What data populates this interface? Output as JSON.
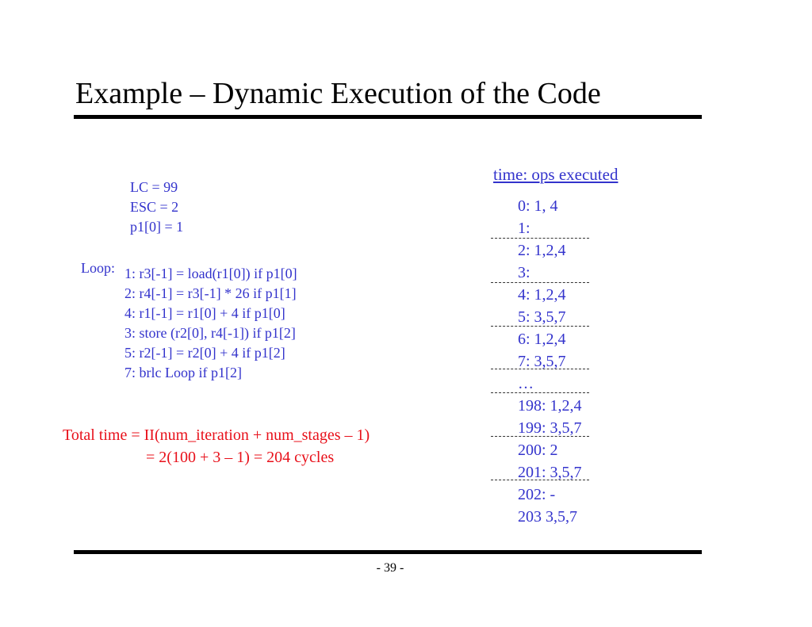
{
  "slide": {
    "title": "Example – Dynamic Execution of the Code",
    "page_number": "- 39 -"
  },
  "registers": [
    "LC = 99",
    "ESC = 2",
    "p1[0] = 1"
  ],
  "loop": {
    "label": "Loop:",
    "lines": [
      "1: r3[-1] = load(r1[0]) if p1[0]",
      "2: r4[-1] = r3[-1] * 26 if p1[1]",
      "4: r1[-1] = r1[0] + 4 if p1[0]",
      "3: store (r2[0], r4[-1]) if p1[2]",
      "5: r2[-1] = r2[0] + 4 if p1[2]",
      "7: brlc Loop if p1[2]"
    ]
  },
  "total_time": {
    "line1": "Total time = II(num_iteration + num_stages – 1)",
    "line2": "= 2(100 + 3 – 1) = 204 cycles"
  },
  "timeline": {
    "header": "time: ops executed",
    "entries": [
      "0: 1, 4",
      "1:",
      "2: 1,2,4",
      "3:",
      "4: 1,2,4",
      "5: 3,5,7",
      "6: 1,2,4",
      "7: 3,5,7",
      "…",
      "198: 1,2,4",
      "199: 3,5,7",
      "200: 2",
      "201: 3,5,7",
      "202: -",
      "203 3,5,7"
    ]
  },
  "colors": {
    "text": "#000000",
    "code_blue": "#3333cc",
    "highlight_red": "#e8101a"
  }
}
